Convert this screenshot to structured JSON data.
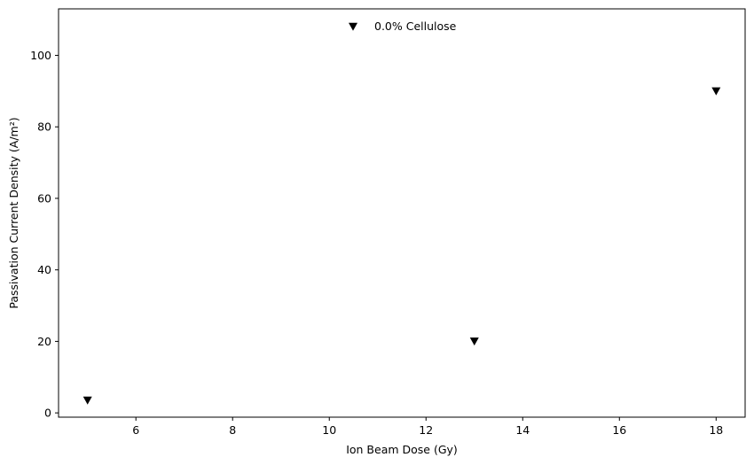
{
  "chart_data": {
    "type": "scatter",
    "title": "",
    "xlabel": "Ion Beam Dose (Gy)",
    "ylabel": "Passivation Current Density (A/m²)",
    "xlim": [
      4.4,
      18.6
    ],
    "ylim": [
      -1.2,
      113
    ],
    "xticks": [
      6,
      8,
      10,
      12,
      14,
      16,
      18
    ],
    "yticks": [
      0,
      20,
      40,
      60,
      80,
      100
    ],
    "grid": false,
    "legend_position": "top-center",
    "series": [
      {
        "name": "0.0% Cellulose",
        "marker": "triangle-down",
        "color": "#000000",
        "x": [
          5,
          13,
          18
        ],
        "y": [
          3.5,
          20,
          90
        ]
      }
    ]
  }
}
